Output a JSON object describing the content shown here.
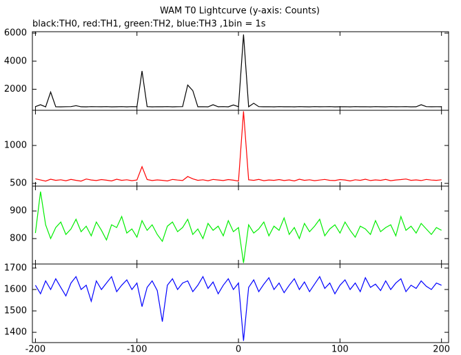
{
  "chart_data": {
    "type": "line",
    "title": "WAM T0 Lightcurve (y-axis: Counts)",
    "subtitle": "black:TH0, red:TH1, green:TH2, blue:TH3 ,1bin = 1s",
    "x": [
      -200,
      -195,
      -190,
      -185,
      -180,
      -175,
      -170,
      -165,
      -160,
      -155,
      -150,
      -145,
      -140,
      -135,
      -130,
      -125,
      -120,
      -115,
      -110,
      -105,
      -100,
      -95,
      -90,
      -85,
      -80,
      -75,
      -70,
      -65,
      -60,
      -55,
      -50,
      -45,
      -40,
      -35,
      -30,
      -25,
      -20,
      -15,
      -10,
      -5,
      0,
      5,
      10,
      15,
      20,
      25,
      30,
      35,
      40,
      45,
      50,
      55,
      60,
      65,
      70,
      75,
      80,
      85,
      90,
      95,
      100,
      105,
      110,
      115,
      120,
      125,
      130,
      135,
      140,
      145,
      150,
      155,
      160,
      165,
      170,
      175,
      180,
      185,
      190,
      195,
      200
    ],
    "xlim": [
      -203,
      207
    ],
    "xticks": [
      -200,
      -100,
      0,
      100,
      200
    ],
    "series": [
      {
        "color": "#000000",
        "ylim": [
          500,
          6100
        ],
        "yticks": [
          2000,
          4000,
          6000
        ],
        "values": [
          760,
          900,
          740,
          1800,
          750,
          745,
          755,
          760,
          830,
          750,
          745,
          760,
          755,
          750,
          760,
          748,
          752,
          758,
          745,
          760,
          750,
          3300,
          760,
          745,
          755,
          750,
          760,
          748,
          755,
          760,
          2300,
          1900,
          750,
          755,
          745,
          900,
          750,
          760,
          745,
          880,
          755,
          5900,
          750,
          1000,
          760,
          750,
          755,
          745,
          760,
          750,
          755,
          748,
          760,
          752,
          745,
          758,
          750,
          755,
          760,
          748,
          752,
          757,
          745,
          760,
          750,
          755,
          748,
          760,
          752,
          745,
          758,
          750,
          755,
          760,
          748,
          752,
          900,
          760,
          750,
          755,
          752
        ]
      },
      {
        "color": "#ff0000",
        "ylim": [
          464,
          1464
        ],
        "yticks": [
          500,
          1000
        ],
        "values": [
          560,
          545,
          530,
          555,
          540,
          548,
          535,
          552,
          540,
          530,
          558,
          545,
          538,
          550,
          542,
          532,
          555,
          540,
          548,
          536,
          545,
          720,
          550,
          538,
          546,
          540,
          532,
          552,
          544,
          538,
          590,
          560,
          540,
          548,
          535,
          552,
          545,
          538,
          550,
          542,
          530,
          1450,
          548,
          540,
          552,
          536,
          545,
          540,
          550,
          538,
          546,
          532,
          555,
          540,
          548,
          536,
          544,
          552,
          540,
          538,
          550,
          545,
          532,
          548,
          540,
          555,
          538,
          546,
          540,
          552,
          536,
          545,
          550,
          558,
          540,
          546,
          538,
          552,
          544,
          540,
          548
        ]
      },
      {
        "color": "#00ee00",
        "ylim": [
          708,
          990
        ],
        "yticks": [
          800,
          900
        ],
        "values": [
          820,
          970,
          850,
          800,
          840,
          860,
          815,
          835,
          870,
          825,
          845,
          810,
          860,
          830,
          795,
          850,
          840,
          880,
          820,
          835,
          805,
          865,
          830,
          850,
          815,
          790,
          845,
          860,
          825,
          840,
          870,
          815,
          835,
          800,
          855,
          830,
          845,
          810,
          865,
          825,
          840,
          712,
          850,
          820,
          835,
          860,
          810,
          845,
          830,
          875,
          815,
          840,
          800,
          855,
          825,
          845,
          870,
          810,
          835,
          850,
          820,
          860,
          830,
          805,
          845,
          835,
          815,
          865,
          825,
          840,
          850,
          810,
          880,
          830,
          845,
          820,
          855,
          835,
          815,
          840,
          830
        ]
      },
      {
        "color": "#0000ff",
        "ylim": [
          1352,
          1719
        ],
        "yticks": [
          1400,
          1500,
          1600,
          1700
        ],
        "values": [
          1620,
          1580,
          1640,
          1600,
          1650,
          1610,
          1570,
          1630,
          1660,
          1600,
          1620,
          1545,
          1640,
          1600,
          1630,
          1660,
          1590,
          1620,
          1645,
          1600,
          1630,
          1520,
          1610,
          1640,
          1595,
          1450,
          1620,
          1650,
          1600,
          1630,
          1640,
          1590,
          1620,
          1660,
          1605,
          1635,
          1580,
          1620,
          1650,
          1600,
          1630,
          1360,
          1610,
          1645,
          1590,
          1625,
          1655,
          1600,
          1630,
          1585,
          1620,
          1650,
          1600,
          1635,
          1590,
          1625,
          1660,
          1605,
          1630,
          1580,
          1620,
          1645,
          1600,
          1630,
          1590,
          1655,
          1610,
          1625,
          1595,
          1640,
          1600,
          1630,
          1650,
          1590,
          1620,
          1605,
          1640,
          1615,
          1600,
          1630,
          1620
        ]
      }
    ]
  }
}
